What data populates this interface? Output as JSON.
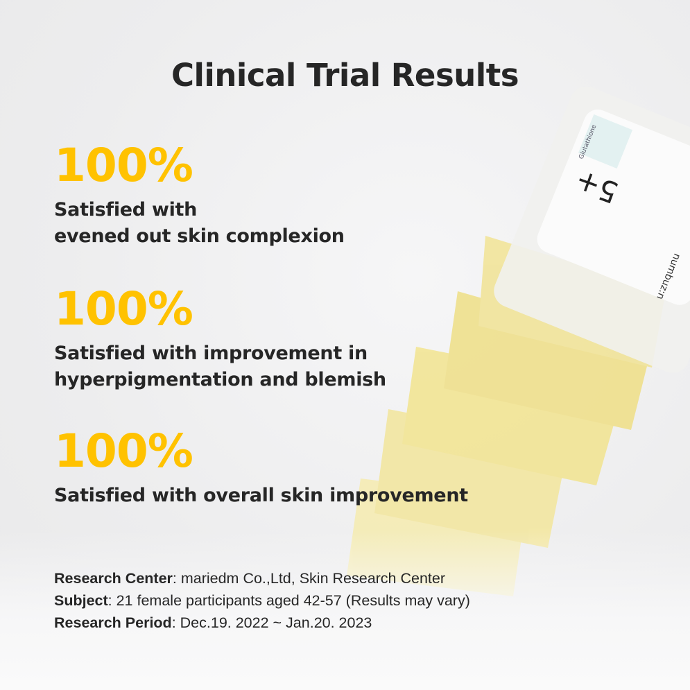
{
  "title": "Clinical Trial Results",
  "accent_color": "#ffc200",
  "stats": [
    {
      "value": "100%",
      "lines": [
        "Satisfied with",
        "evened out skin complexion"
      ]
    },
    {
      "value": "100%",
      "lines": [
        "Satisfied with improvement in",
        "hyperpigmentation and blemish"
      ]
    },
    {
      "value": "100%",
      "lines": [
        "Satisfied with overall skin improvement"
      ]
    }
  ],
  "footer": [
    {
      "label": "Research Center",
      "value": ": mariedm Co.,Ltd, Skin Research Center"
    },
    {
      "label": "Subject",
      "value": ": 21 female participants aged 42-57 (Results may vary)"
    },
    {
      "label": "Research Period",
      "value": ": Dec.19. 2022 ~ Jan.20. 2023"
    }
  ],
  "product": {
    "brand": "numbuz:n",
    "number": "5+",
    "ingredient": "Glutathione"
  }
}
